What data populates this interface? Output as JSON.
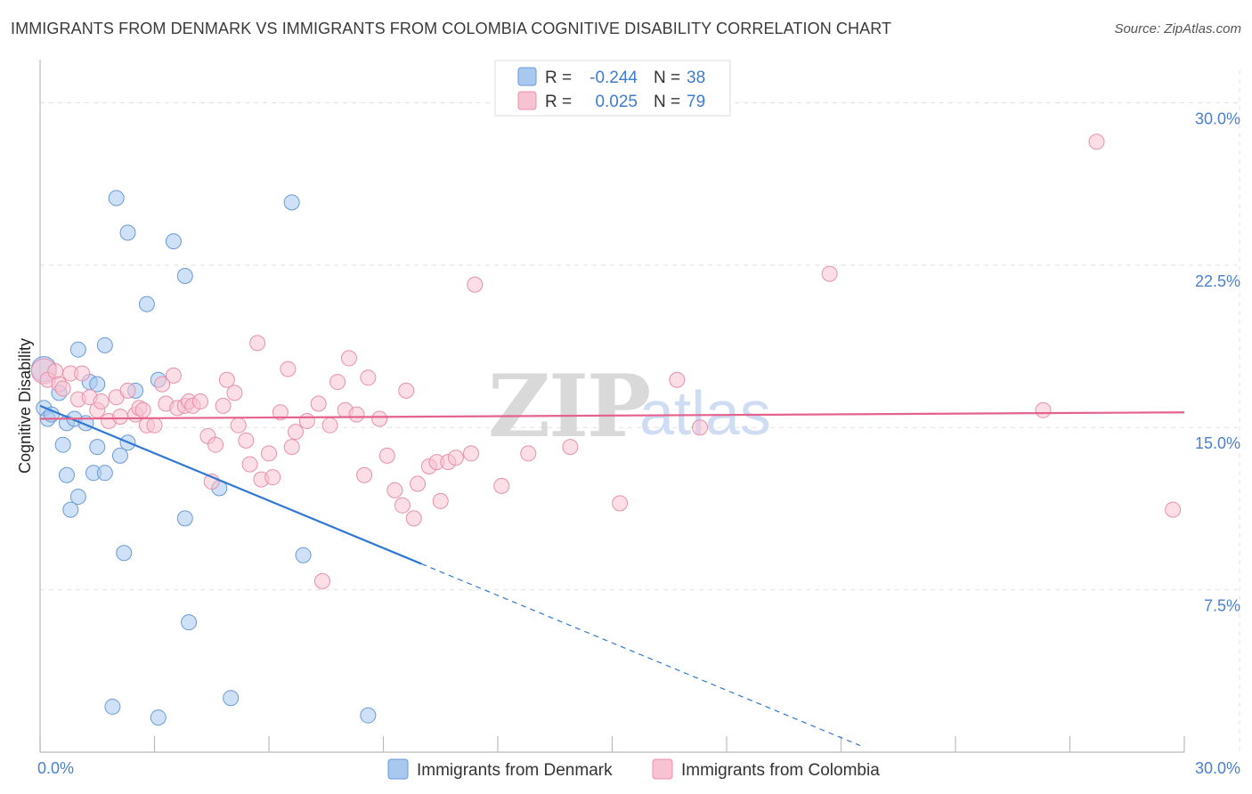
{
  "chart_data": {
    "type": "scatter",
    "title": "IMMIGRANTS FROM DENMARK VS IMMIGRANTS FROM COLOMBIA COGNITIVE DISABILITY CORRELATION CHART",
    "source": "Source: ZipAtlas.com",
    "xlabel": "",
    "ylabel": "Cognitive Disability",
    "xlim": [
      0,
      30
    ],
    "ylim": [
      0,
      31.5
    ],
    "y_ticks": [
      7.5,
      15.0,
      22.5,
      30.0
    ],
    "y_tick_labels": [
      "7.5%",
      "15.0%",
      "22.5%",
      "30.0%"
    ],
    "x_tick_labels": [
      "0.0%",
      "30.0%"
    ],
    "watermark": {
      "zip": "ZIP",
      "atlas": "atlas"
    },
    "legend": {
      "rows": [
        {
          "r_label": "R =",
          "r_value": "-0.244",
          "n_label": "N =",
          "n_value": "38"
        },
        {
          "r_label": "R =",
          "r_value": "0.025",
          "n_label": "N =",
          "n_value": "79"
        }
      ]
    },
    "series": [
      {
        "name": "Immigrants from Denmark",
        "color": "#a8c8f0",
        "edge": "#6a9ad8",
        "line_color": "#2f78d4",
        "trend": {
          "x0": 0,
          "y0": 16.0,
          "x1": 10,
          "y1": 8.7,
          "dash_to_x": 21.5
        },
        "points": [
          [
            0.1,
            15.9
          ],
          [
            0.2,
            15.4
          ],
          [
            0.3,
            15.6
          ],
          [
            0.5,
            16.6
          ],
          [
            0.6,
            14.2
          ],
          [
            0.7,
            15.2
          ],
          [
            0.7,
            12.8
          ],
          [
            0.8,
            11.2
          ],
          [
            1.0,
            11.8
          ],
          [
            0.9,
            15.4
          ],
          [
            1.2,
            15.2
          ],
          [
            1.0,
            18.6
          ],
          [
            1.3,
            17.1
          ],
          [
            1.4,
            12.9
          ],
          [
            1.5,
            14.1
          ],
          [
            1.5,
            17.0
          ],
          [
            1.7,
            18.8
          ],
          [
            1.7,
            12.9
          ],
          [
            2.0,
            25.6
          ],
          [
            2.1,
            13.7
          ],
          [
            2.3,
            14.3
          ],
          [
            2.2,
            9.2
          ],
          [
            2.3,
            24.0
          ],
          [
            2.5,
            16.7
          ],
          [
            2.8,
            20.7
          ],
          [
            3.1,
            17.2
          ],
          [
            3.5,
            23.6
          ],
          [
            3.8,
            22.0
          ],
          [
            3.8,
            10.8
          ],
          [
            3.9,
            6.0
          ],
          [
            4.7,
            12.2
          ],
          [
            5.0,
            2.5
          ],
          [
            6.6,
            25.4
          ],
          [
            6.9,
            9.1
          ],
          [
            8.6,
            1.7
          ],
          [
            1.9,
            2.1
          ],
          [
            3.1,
            1.6
          ],
          [
            0.1,
            17.7
          ]
        ]
      },
      {
        "name": "Immigrants from Colombia",
        "color": "#f7c2d2",
        "edge": "#e890ac",
        "line_color": "#e4628c",
        "trend": {
          "x0": 0,
          "y0": 15.4,
          "x1": 30,
          "y1": 15.7
        },
        "points": [
          [
            0.1,
            17.6
          ],
          [
            0.2,
            17.2
          ],
          [
            0.4,
            17.6
          ],
          [
            0.5,
            17.0
          ],
          [
            0.6,
            16.8
          ],
          [
            0.8,
            17.5
          ],
          [
            1.0,
            16.3
          ],
          [
            1.1,
            17.5
          ],
          [
            1.3,
            16.4
          ],
          [
            1.5,
            15.8
          ],
          [
            1.6,
            16.2
          ],
          [
            1.8,
            15.3
          ],
          [
            2.0,
            16.4
          ],
          [
            2.1,
            15.5
          ],
          [
            2.3,
            16.7
          ],
          [
            2.5,
            15.6
          ],
          [
            2.6,
            15.9
          ],
          [
            2.7,
            15.8
          ],
          [
            2.8,
            15.1
          ],
          [
            3.0,
            15.1
          ],
          [
            3.2,
            17.0
          ],
          [
            3.3,
            16.1
          ],
          [
            3.5,
            17.4
          ],
          [
            3.6,
            15.9
          ],
          [
            3.8,
            16.0
          ],
          [
            3.9,
            16.2
          ],
          [
            4.0,
            16.0
          ],
          [
            4.2,
            16.2
          ],
          [
            4.4,
            14.6
          ],
          [
            4.5,
            12.5
          ],
          [
            4.6,
            14.2
          ],
          [
            4.8,
            16.0
          ],
          [
            4.9,
            17.2
          ],
          [
            5.1,
            16.6
          ],
          [
            5.2,
            15.1
          ],
          [
            5.4,
            14.4
          ],
          [
            5.5,
            13.3
          ],
          [
            5.7,
            18.9
          ],
          [
            5.8,
            12.6
          ],
          [
            6.0,
            13.8
          ],
          [
            6.1,
            12.7
          ],
          [
            6.3,
            15.7
          ],
          [
            6.5,
            17.7
          ],
          [
            6.6,
            14.1
          ],
          [
            6.7,
            14.8
          ],
          [
            7.0,
            15.3
          ],
          [
            7.3,
            16.1
          ],
          [
            7.4,
            7.9
          ],
          [
            7.6,
            15.1
          ],
          [
            7.8,
            17.1
          ],
          [
            8.0,
            15.8
          ],
          [
            8.1,
            18.2
          ],
          [
            8.3,
            15.6
          ],
          [
            8.5,
            12.8
          ],
          [
            8.6,
            17.3
          ],
          [
            8.9,
            15.4
          ],
          [
            9.1,
            13.7
          ],
          [
            9.3,
            12.1
          ],
          [
            9.5,
            11.4
          ],
          [
            9.6,
            16.7
          ],
          [
            9.8,
            10.8
          ],
          [
            9.9,
            12.4
          ],
          [
            10.2,
            13.2
          ],
          [
            10.4,
            13.4
          ],
          [
            10.5,
            11.6
          ],
          [
            10.7,
            13.4
          ],
          [
            10.9,
            13.6
          ],
          [
            11.3,
            13.8
          ],
          [
            11.4,
            21.6
          ],
          [
            12.1,
            12.3
          ],
          [
            12.8,
            13.8
          ],
          [
            13.9,
            14.1
          ],
          [
            15.2,
            11.5
          ],
          [
            16.7,
            17.2
          ],
          [
            17.3,
            15.0
          ],
          [
            20.7,
            22.1
          ],
          [
            26.3,
            15.8
          ],
          [
            27.7,
            28.2
          ],
          [
            29.7,
            11.2
          ]
        ]
      }
    ]
  }
}
